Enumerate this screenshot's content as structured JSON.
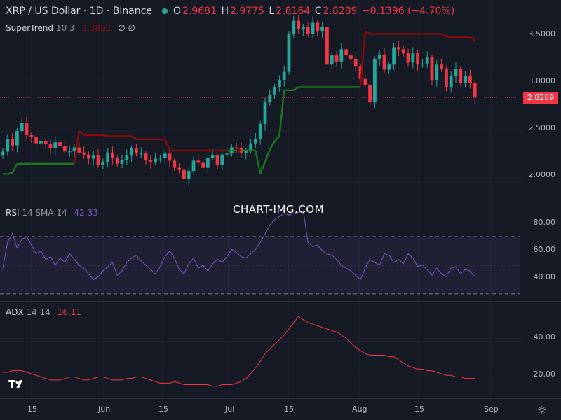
{
  "header": {
    "symbol": "XRP / US Dollar · 1D · Binance",
    "ohlc": {
      "o": "2.9681",
      "h": "2.9775",
      "l": "2.8164",
      "c": "2.8289",
      "chg": "−0.1396 (−4.70%)"
    }
  },
  "indicators": {
    "supertrend": {
      "name": "SuperTrend",
      "params": "10 3",
      "value": "3.3892",
      "extra": "∅ ∅"
    },
    "rsi": {
      "name": "RSI",
      "params": "14 SMA 14",
      "value": "42.33"
    },
    "adx": {
      "name": "ADX",
      "params": "14 14",
      "value": "16.11"
    }
  },
  "watermark": "CHART-IMG.COM",
  "last_price_tag": "2.8289",
  "price_axis": [
    "3.5000",
    "3.0000",
    "2.5000",
    "2.0000"
  ],
  "rsi_axis": [
    "80.00",
    "60.00",
    "40.00"
  ],
  "adx_axis": [
    "40.00",
    "20.00"
  ],
  "x_axis": [
    "15",
    "Jun",
    "15",
    "Jul",
    "15",
    "Aug",
    "15",
    "Sep"
  ],
  "colors": {
    "up": "#26a69a",
    "down": "#f23645",
    "st_up": "#1b7a1b",
    "st_down": "#8b0a0a",
    "rsi": "#7e57c2",
    "adx": "#f23645"
  },
  "chart_data": [
    {
      "type": "candlestick",
      "title": "XRP / US Dollar · 1D · Binance",
      "ylim": [
        1.85,
        3.7
      ],
      "close": [
        2.3,
        2.42,
        2.36,
        2.5,
        2.58,
        2.46,
        2.44,
        2.38,
        2.4,
        2.37,
        2.33,
        2.39,
        2.35,
        2.3,
        2.3,
        2.34,
        2.29,
        2.27,
        2.23,
        2.26,
        2.17,
        2.2,
        2.29,
        2.24,
        2.18,
        2.22,
        2.26,
        2.33,
        2.28,
        2.28,
        2.22,
        2.2,
        2.23,
        2.24,
        2.28,
        2.21,
        2.14,
        2.12,
        2.03,
        2.11,
        2.21,
        2.19,
        2.14,
        2.24,
        2.26,
        2.17,
        2.27,
        2.28,
        2.34,
        2.33,
        2.29,
        2.31,
        2.38,
        2.42,
        2.57,
        2.78,
        2.85,
        2.93,
        3.0,
        3.08,
        3.45,
        3.58,
        3.5,
        3.52,
        3.45,
        3.56,
        3.48,
        3.52,
        3.15,
        3.24,
        3.18,
        3.3,
        3.24,
        3.2,
        3.13,
        3.01,
        2.95,
        2.78,
        3.2,
        3.25,
        3.1,
        3.15,
        3.32,
        3.3,
        3.26,
        3.17,
        3.26,
        3.15,
        3.16,
        3.22,
        3.0,
        3.15,
        3.11,
        2.93,
        3.04,
        3.11,
        2.97,
        3.04,
        2.97,
        2.83
      ],
      "supertrend": [
        2.08,
        2.08,
        2.09,
        2.18,
        2.18,
        2.18,
        2.18,
        2.18,
        2.18,
        2.18,
        2.18,
        2.18,
        2.18,
        2.18,
        2.18,
        2.18,
        2.5,
        2.46,
        2.46,
        2.46,
        2.46,
        2.46,
        2.45,
        2.45,
        2.45,
        2.45,
        2.45,
        2.45,
        2.42,
        2.42,
        2.42,
        2.42,
        2.42,
        2.42,
        2.42,
        2.31,
        2.31,
        2.31,
        2.31,
        2.31,
        2.31,
        2.31,
        2.31,
        2.31,
        2.31,
        2.31,
        2.31,
        2.31,
        2.31,
        2.31,
        2.31,
        2.31,
        2.31,
        2.31,
        2.08,
        2.2,
        2.32,
        2.4,
        2.45,
        2.9,
        2.9,
        2.9,
        2.93,
        2.93,
        2.93,
        2.93,
        2.93,
        2.93,
        2.93,
        2.93,
        2.93,
        2.93,
        2.93,
        2.93,
        2.93,
        2.93,
        3.47,
        3.45,
        3.45,
        3.45,
        3.45,
        3.45,
        3.45,
        3.45,
        3.45,
        3.45,
        3.45,
        3.45,
        3.45,
        3.45,
        3.45,
        3.45,
        3.45,
        3.42,
        3.42,
        3.42,
        3.42,
        3.42,
        3.42,
        3.39
      ]
    },
    {
      "type": "line",
      "title": "RSI 14 SMA 14",
      "ylim": [
        28,
        90
      ],
      "values": [
        48,
        66,
        72,
        62,
        68,
        70,
        64,
        58,
        60,
        54,
        56,
        50,
        55,
        52,
        58,
        54,
        50,
        48,
        44,
        40,
        42,
        46,
        49,
        52,
        43,
        46,
        52,
        55,
        57,
        53,
        50,
        47,
        44,
        49,
        56,
        60,
        55,
        47,
        44,
        51,
        55,
        48,
        50,
        46,
        51,
        54,
        52,
        56,
        61,
        59,
        56,
        55,
        58,
        61,
        66,
        72,
        78,
        82,
        84,
        86,
        85,
        86,
        87,
        88,
        66,
        63,
        64,
        60,
        58,
        57,
        54,
        50,
        48,
        46,
        43,
        40,
        48,
        54,
        52,
        50,
        58,
        57,
        52,
        54,
        51,
        58,
        55,
        49,
        50,
        47,
        43,
        48,
        44,
        42,
        48,
        49,
        44,
        47,
        46,
        42
      ],
      "bands": [
        70,
        30
      ],
      "mid_line": 50
    },
    {
      "type": "line",
      "title": "ADX 14 14",
      "ylim": [
        5,
        62
      ],
      "values": [
        20,
        20,
        21,
        21,
        21,
        20,
        19,
        18,
        17,
        16,
        15,
        15,
        15,
        16,
        17,
        17,
        16,
        15,
        15,
        16,
        17,
        17,
        16,
        15,
        15,
        15,
        16,
        16,
        17,
        17,
        16,
        15,
        14,
        13,
        13,
        13,
        14,
        13,
        12,
        12,
        12,
        12,
        12,
        12,
        11,
        11,
        12,
        12,
        12,
        13,
        14,
        16,
        19,
        23,
        27,
        32,
        35,
        38,
        41,
        44,
        48,
        52,
        56,
        54,
        52,
        51,
        50,
        49,
        48,
        47,
        46,
        44,
        42,
        39,
        36,
        34,
        32,
        31,
        31,
        31,
        31,
        30,
        30,
        28,
        26,
        24,
        23,
        22,
        22,
        21,
        21,
        20,
        19,
        18,
        18,
        17,
        17,
        16,
        16,
        16
      ]
    }
  ]
}
